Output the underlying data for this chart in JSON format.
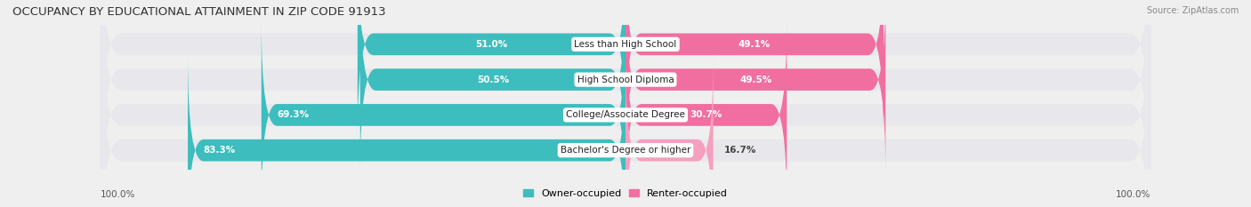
{
  "title": "OCCUPANCY BY EDUCATIONAL ATTAINMENT IN ZIP CODE 91913",
  "source": "Source: ZipAtlas.com",
  "categories": [
    "Less than High School",
    "High School Diploma",
    "College/Associate Degree",
    "Bachelor's Degree or higher"
  ],
  "owner_values": [
    51.0,
    50.5,
    69.3,
    83.3
  ],
  "renter_values": [
    49.1,
    49.5,
    30.7,
    16.7
  ],
  "owner_color": "#3dbdbd",
  "renter_colors": [
    "#f06fa0",
    "#f06fa0",
    "#f06fa0",
    "#f4a0be"
  ],
  "background_color": "#efefef",
  "bar_background": "#e8e8ec",
  "title_fontsize": 9.5,
  "label_fontsize": 7.5,
  "pct_fontsize": 7.5,
  "tick_fontsize": 7.5,
  "legend_fontsize": 8,
  "source_fontsize": 7
}
